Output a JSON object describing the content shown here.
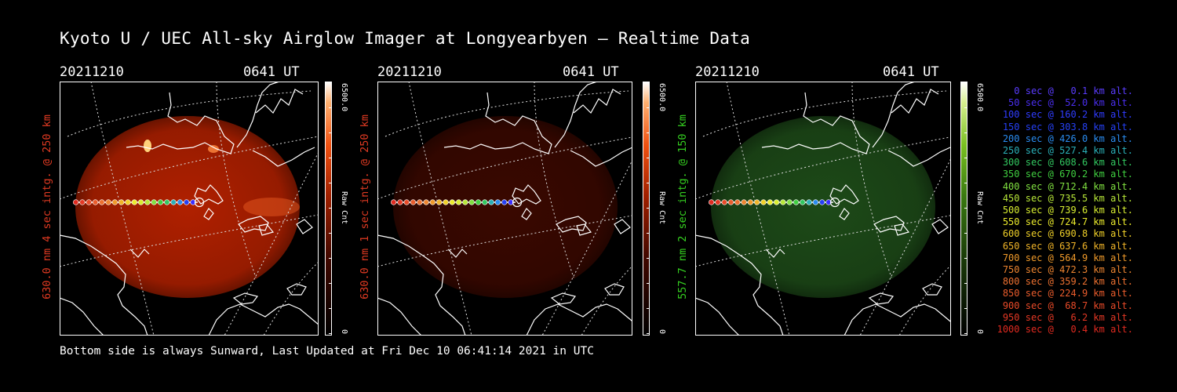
{
  "title": "Kyoto U / UEC All-sky Airglow Imager at Longyearbyen — Realtime Data",
  "footer": "Bottom side is always Sunward, Last Updated at Fri Dec 10 06:41:14 2021 in UTC",
  "panels": [
    {
      "date": "20211210",
      "time": "0641 UT",
      "side_label": "630.0 nm 4 sec intg. @ 250 km",
      "label_color": "#e03a22",
      "cbar_max": "6500.0",
      "cbar_unit": "Raw Cnt",
      "cbar_min": "0",
      "glow_color": "#b02000",
      "colormap": "red",
      "glow_level": 0.8
    },
    {
      "date": "20211210",
      "time": "0641 UT",
      "side_label": "630.0 nm 1 sec intg. @ 250 km",
      "label_color": "#e03a22",
      "cbar_max": "6500.0",
      "cbar_unit": "Raw Cnt",
      "cbar_min": "0",
      "glow_color": "#3a0800",
      "colormap": "red",
      "glow_level": 0.25
    },
    {
      "date": "20211210",
      "time": "0641 UT",
      "side_label": "557.7 nm 2 sec intg. @ 150 km",
      "label_color": "#35d020",
      "cbar_max": "6500.0",
      "cbar_unit": "Raw Cnt",
      "cbar_min": "0",
      "glow_color": "#1d4a18",
      "colormap": "green",
      "glow_level": 0.45
    }
  ],
  "legend": [
    {
      "text": "   0 sec @   0.1 km alt.",
      "color": "#5a3cff"
    },
    {
      "text": "  50 sec @  52.0 km alt.",
      "color": "#4a2ef0"
    },
    {
      "text": " 100 sec @ 160.2 km alt.",
      "color": "#2f3cff"
    },
    {
      "text": " 150 sec @ 303.8 km alt.",
      "color": "#2540f5"
    },
    {
      "text": " 200 sec @ 426.0 km alt.",
      "color": "#2a8cf0"
    },
    {
      "text": " 250 sec @ 527.4 km alt.",
      "color": "#2ab0b8"
    },
    {
      "text": " 300 sec @ 608.6 km alt.",
      "color": "#32c860"
    },
    {
      "text": " 350 sec @ 670.2 km alt.",
      "color": "#40d040"
    },
    {
      "text": " 400 sec @ 712.4 km alt.",
      "color": "#80e040"
    },
    {
      "text": " 450 sec @ 735.5 km alt.",
      "color": "#b8e838"
    },
    {
      "text": " 500 sec @ 739.6 km alt.",
      "color": "#d8ee30"
    },
    {
      "text": " 550 sec @ 724.7 km alt.",
      "color": "#ecec2c"
    },
    {
      "text": " 600 sec @ 690.8 km alt.",
      "color": "#f0d028"
    },
    {
      "text": " 650 sec @ 637.6 km alt.",
      "color": "#f0b428"
    },
    {
      "text": " 700 sec @ 564.9 km alt.",
      "color": "#f09a2a"
    },
    {
      "text": " 750 sec @ 472.3 km alt.",
      "color": "#ee8530"
    },
    {
      "text": " 800 sec @ 359.2 km alt.",
      "color": "#ec7030"
    },
    {
      "text": " 850 sec @ 224.9 km alt.",
      "color": "#ea5c2c"
    },
    {
      "text": " 900 sec @  68.7 km alt.",
      "color": "#e84a28"
    },
    {
      "text": " 950 sec @   6.2 km alt.",
      "color": "#e43824"
    },
    {
      "text": "1000 sec @   0.4 km alt.",
      "color": "#e02a20"
    }
  ]
}
